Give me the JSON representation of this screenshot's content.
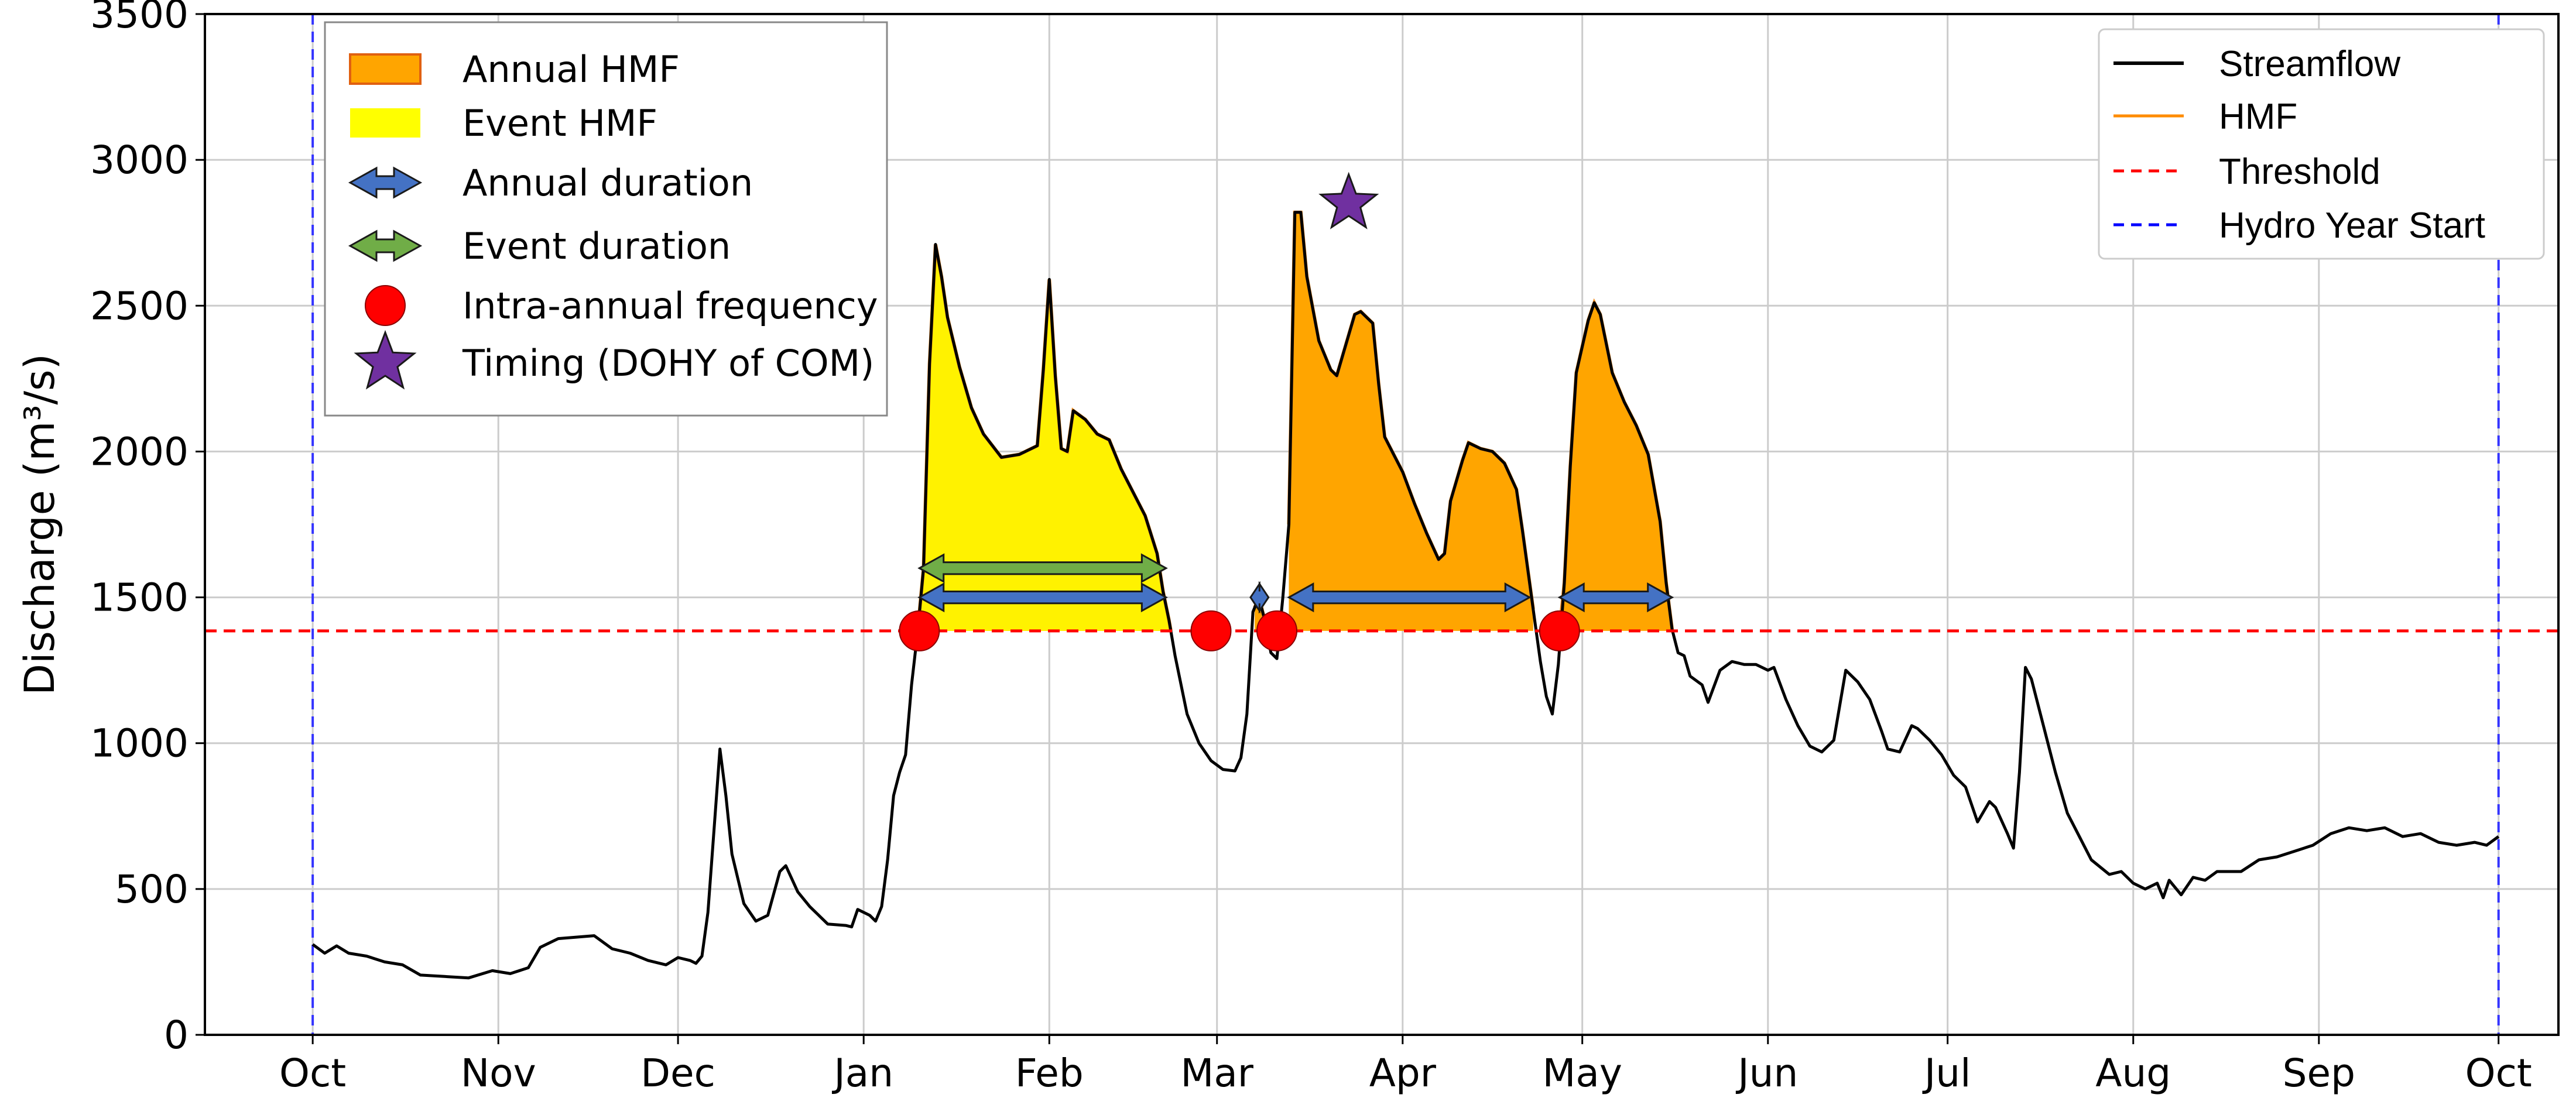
{
  "chart_data": {
    "type": "area",
    "ylabel": "Discharge (m³/s)",
    "ylim": [
      0,
      3500
    ],
    "yticks": [
      0,
      500,
      1000,
      1500,
      2000,
      2500,
      3000,
      3500
    ],
    "xlim": [
      -18,
      375
    ],
    "x_unit": "day of hydrological year",
    "month_ticks": [
      {
        "label": "Oct",
        "day": 0
      },
      {
        "label": "Nov",
        "day": 31
      },
      {
        "label": "Dec",
        "day": 61
      },
      {
        "label": "Jan",
        "day": 92
      },
      {
        "label": "Feb",
        "day": 123
      },
      {
        "label": "Mar",
        "day": 151
      },
      {
        "label": "Apr",
        "day": 182
      },
      {
        "label": "May",
        "day": 212
      },
      {
        "label": "Jun",
        "day": 243
      },
      {
        "label": "Jul",
        "day": 273
      },
      {
        "label": "Aug",
        "day": 304
      },
      {
        "label": "Sep",
        "day": 335
      },
      {
        "label": "Oct",
        "day": 365
      }
    ],
    "grid": true,
    "threshold": 1385,
    "hydro_year_start_days": [
      0,
      365
    ],
    "streamflow": [
      [
        0,
        310
      ],
      [
        2,
        280
      ],
      [
        4,
        305
      ],
      [
        6,
        280
      ],
      [
        9,
        270
      ],
      [
        12,
        250
      ],
      [
        15,
        240
      ],
      [
        18,
        205
      ],
      [
        22,
        200
      ],
      [
        26,
        195
      ],
      [
        30,
        220
      ],
      [
        33,
        210
      ],
      [
        36,
        230
      ],
      [
        38,
        300
      ],
      [
        41,
        330
      ],
      [
        44,
        335
      ],
      [
        47,
        340
      ],
      [
        50,
        295
      ],
      [
        53,
        280
      ],
      [
        56,
        255
      ],
      [
        59,
        240
      ],
      [
        61,
        265
      ],
      [
        63,
        255
      ],
      [
        64,
        245
      ],
      [
        65,
        270
      ],
      [
        66,
        420
      ],
      [
        67,
        700
      ],
      [
        68,
        980
      ],
      [
        69,
        820
      ],
      [
        70,
        620
      ],
      [
        72,
        450
      ],
      [
        74,
        390
      ],
      [
        76,
        410
      ],
      [
        78,
        560
      ],
      [
        79,
        580
      ],
      [
        81,
        490
      ],
      [
        83,
        440
      ],
      [
        86,
        380
      ],
      [
        89,
        375
      ],
      [
        90,
        370
      ],
      [
        91,
        430
      ],
      [
        93,
        410
      ],
      [
        94,
        390
      ],
      [
        95,
        440
      ],
      [
        96,
        600
      ],
      [
        97,
        820
      ],
      [
        98,
        900
      ],
      [
        99,
        960
      ],
      [
        100,
        1200
      ],
      [
        101,
        1380
      ],
      [
        102,
        1600
      ],
      [
        103,
        2300
      ],
      [
        104,
        2710
      ],
      [
        105,
        2600
      ],
      [
        106,
        2460
      ],
      [
        108,
        2290
      ],
      [
        110,
        2150
      ],
      [
        112,
        2060
      ],
      [
        115,
        1980
      ],
      [
        118,
        1990
      ],
      [
        121,
        2020
      ],
      [
        122,
        2280
      ],
      [
        123,
        2590
      ],
      [
        124,
        2260
      ],
      [
        125,
        2010
      ],
      [
        126,
        2000
      ],
      [
        127,
        2140
      ],
      [
        129,
        2110
      ],
      [
        131,
        2060
      ],
      [
        133,
        2040
      ],
      [
        135,
        1940
      ],
      [
        137,
        1860
      ],
      [
        139,
        1780
      ],
      [
        141,
        1650
      ],
      [
        142,
        1520
      ],
      [
        143,
        1420
      ],
      [
        144,
        1300
      ],
      [
        146,
        1100
      ],
      [
        148,
        1000
      ],
      [
        150,
        940
      ],
      [
        152,
        910
      ],
      [
        154,
        905
      ],
      [
        155,
        950
      ],
      [
        156,
        1100
      ],
      [
        157,
        1450
      ],
      [
        158,
        1500
      ],
      [
        159,
        1420
      ],
      [
        160,
        1310
      ],
      [
        161,
        1290
      ],
      [
        162,
        1500
      ],
      [
        163,
        1750
      ],
      [
        164,
        2820
      ],
      [
        165,
        2820
      ],
      [
        166,
        2600
      ],
      [
        168,
        2380
      ],
      [
        170,
        2280
      ],
      [
        171,
        2260
      ],
      [
        172,
        2330
      ],
      [
        174,
        2470
      ],
      [
        175,
        2480
      ],
      [
        177,
        2440
      ],
      [
        178,
        2230
      ],
      [
        179,
        2050
      ],
      [
        182,
        1930
      ],
      [
        184,
        1820
      ],
      [
        186,
        1720
      ],
      [
        188,
        1630
      ],
      [
        189,
        1650
      ],
      [
        190,
        1830
      ],
      [
        192,
        1970
      ],
      [
        193,
        2030
      ],
      [
        195,
        2010
      ],
      [
        197,
        2000
      ],
      [
        199,
        1960
      ],
      [
        201,
        1870
      ],
      [
        202,
        1730
      ],
      [
        203,
        1580
      ],
      [
        204,
        1430
      ],
      [
        205,
        1280
      ],
      [
        206,
        1160
      ],
      [
        207,
        1100
      ],
      [
        208,
        1270
      ],
      [
        209,
        1550
      ],
      [
        210,
        1950
      ],
      [
        211,
        2270
      ],
      [
        213,
        2450
      ],
      [
        214,
        2510
      ],
      [
        215,
        2470
      ],
      [
        217,
        2270
      ],
      [
        219,
        2170
      ],
      [
        221,
        2090
      ],
      [
        223,
        1990
      ],
      [
        225,
        1760
      ],
      [
        226,
        1550
      ],
      [
        227,
        1390
      ],
      [
        228,
        1310
      ],
      [
        229,
        1300
      ],
      [
        230,
        1230
      ],
      [
        232,
        1200
      ],
      [
        233,
        1140
      ],
      [
        235,
        1250
      ],
      [
        237,
        1280
      ],
      [
        239,
        1270
      ],
      [
        241,
        1270
      ],
      [
        243,
        1250
      ],
      [
        244,
        1260
      ],
      [
        246,
        1150
      ],
      [
        248,
        1060
      ],
      [
        250,
        990
      ],
      [
        252,
        970
      ],
      [
        254,
        1010
      ],
      [
        256,
        1250
      ],
      [
        258,
        1210
      ],
      [
        260,
        1150
      ],
      [
        262,
        1040
      ],
      [
        263,
        980
      ],
      [
        265,
        970
      ],
      [
        267,
        1060
      ],
      [
        268,
        1050
      ],
      [
        270,
        1010
      ],
      [
        272,
        960
      ],
      [
        274,
        890
      ],
      [
        276,
        850
      ],
      [
        278,
        730
      ],
      [
        280,
        800
      ],
      [
        281,
        780
      ],
      [
        283,
        690
      ],
      [
        284,
        640
      ],
      [
        285,
        900
      ],
      [
        286,
        1260
      ],
      [
        287,
        1220
      ],
      [
        289,
        1060
      ],
      [
        291,
        900
      ],
      [
        293,
        760
      ],
      [
        295,
        680
      ],
      [
        297,
        600
      ],
      [
        300,
        550
      ],
      [
        302,
        560
      ],
      [
        304,
        520
      ],
      [
        306,
        500
      ],
      [
        308,
        520
      ],
      [
        309,
        470
      ],
      [
        310,
        530
      ],
      [
        312,
        480
      ],
      [
        314,
        540
      ],
      [
        316,
        530
      ],
      [
        318,
        560
      ],
      [
        320,
        560
      ],
      [
        322,
        560
      ],
      [
        325,
        600
      ],
      [
        328,
        610
      ],
      [
        331,
        630
      ],
      [
        334,
        650
      ],
      [
        337,
        690
      ],
      [
        340,
        710
      ],
      [
        343,
        700
      ],
      [
        346,
        710
      ],
      [
        349,
        680
      ],
      [
        352,
        690
      ],
      [
        355,
        660
      ],
      [
        358,
        650
      ],
      [
        361,
        660
      ],
      [
        363,
        650
      ],
      [
        365,
        680
      ]
    ],
    "legend_left": {
      "placement": "top-left",
      "entries": [
        {
          "label": "Annual HMF",
          "symbol": "orange-patch",
          "color": "#FFA500"
        },
        {
          "label": "Event HMF",
          "symbol": "yellow-patch",
          "color": "#FFFF00"
        },
        {
          "label": "Annual duration",
          "symbol": "blue-double-arrow",
          "color": "#4472C4"
        },
        {
          "label": "Event duration",
          "symbol": "green-double-arrow",
          "color": "#70AD47"
        },
        {
          "label": "Intra-annual frequency",
          "symbol": "red-circle",
          "color": "#FF0000"
        },
        {
          "label": "Timing (DOHY of COM)",
          "symbol": "purple-star",
          "color": "#7030A0"
        }
      ]
    },
    "legend_right": {
      "placement": "top-right",
      "entries": [
        {
          "label": "Streamflow",
          "style": "solid",
          "color": "#000000"
        },
        {
          "label": "HMF",
          "style": "solid",
          "color": "#FF8C00"
        },
        {
          "label": "Threshold",
          "style": "dashed",
          "color": "#FF0000"
        },
        {
          "label": "Hydro Year Start",
          "style": "dashed",
          "color": "#0000FF"
        }
      ]
    },
    "annual_hmf_periods": [
      [
        101.3,
        143.3
      ],
      [
        157.3,
        158.9
      ],
      [
        163.0,
        203.8
      ],
      [
        208.2,
        227.0
      ]
    ],
    "event_hmf_period": [
      101.3,
      143.3
    ],
    "intra_annual_frequency_points": [
      {
        "day": 101.3,
        "value": 1385
      },
      {
        "day": 150.0,
        "value": 1385
      },
      {
        "day": 161.0,
        "value": 1385
      },
      {
        "day": 208.2,
        "value": 1385
      }
    ],
    "annual_duration_arrows": [
      [
        101.3,
        142.5
      ],
      [
        156.6,
        159.6
      ],
      [
        163.0,
        203.2
      ],
      [
        208.2,
        227.0
      ]
    ],
    "annual_duration_level": 1500,
    "event_duration_arrow": [
      101.3,
      142.5
    ],
    "event_duration_level": 1600,
    "timing_com": {
      "day": 173,
      "value": 2850
    },
    "colors": {
      "annual_hmf": "#FFA500",
      "event_hmf": "#FFF200",
      "hmf_line": "#F08A1C",
      "streamflow": "#000000",
      "threshold": "#FF0000",
      "hydro_year": "#3333FF",
      "annual_arrow": "#4472C4",
      "event_arrow": "#70AD47",
      "frequency_marker": "#FF0000",
      "timing_star": "#7030A0",
      "grid": "#CCCCCC"
    }
  }
}
